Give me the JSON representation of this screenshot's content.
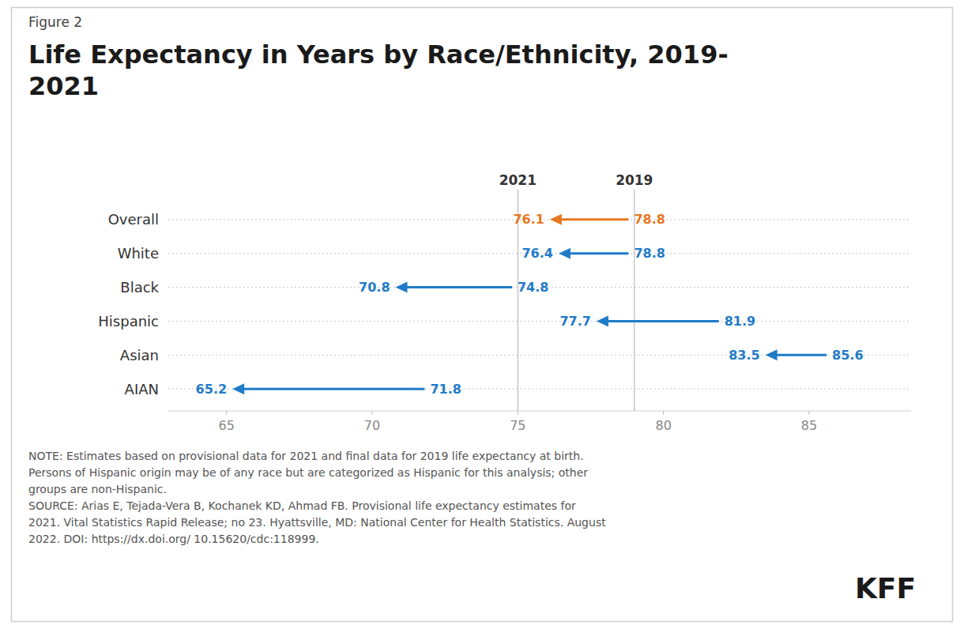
{
  "chart_data": {
    "type": "arrow",
    "figure_label": "Figure 2",
    "title": "Life Expectancy in Years by Race/Ethnicity, 2019-\n2021",
    "categories": [
      "Overall",
      "White",
      "Black",
      "Hispanic",
      "Asian",
      "AIAN"
    ],
    "series": [
      {
        "name": "2021",
        "values": [
          76.1,
          76.4,
          70.8,
          77.7,
          83.5,
          65.2
        ]
      },
      {
        "name": "2019",
        "values": [
          78.8,
          78.8,
          74.8,
          81.9,
          85.6,
          71.8
        ]
      }
    ],
    "colors": [
      "#E87722",
      "#1F7BC8",
      "#1F7BC8",
      "#1F7BC8",
      "#1F7BC8",
      "#1F7BC8"
    ],
    "reference_lines": [
      75.0,
      79.0
    ],
    "xlim": [
      63.0,
      88.5
    ],
    "xticks": [
      65,
      70,
      75,
      80,
      85
    ],
    "grid": true,
    "data_labels": true,
    "note": "NOTE: Estimates based on provisional data for 2021 and final data for 2019 life expectancy at birth.\nPersons of Hispanic origin may be of any race but are categorized as Hispanic for this analysis; other\ngroups are non-Hispanic.\nSOURCE: Arias E, Tejada-Vera B, Kochanek KD, Ahmad FB. Provisional life expectancy estimates for\n2021. Vital Statistics Rapid Release; no 23. Hyattsville, MD: National Center for Health Statistics. August\n2022. DOI: https://dx.doi.org/ 10.15620/cdc:118999.",
    "logo": "KFF"
  }
}
